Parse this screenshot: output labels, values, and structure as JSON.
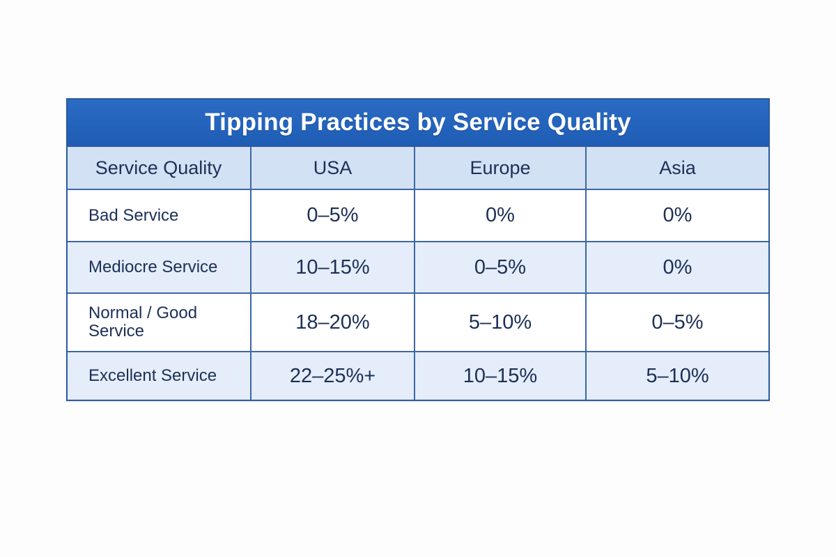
{
  "chart_data": {
    "type": "table",
    "title": "Tipping Practices by Service Quality",
    "columns": [
      "Service Quality",
      "USA",
      "Europe",
      "Asia"
    ],
    "rows": [
      {
        "label": "Bad Service",
        "values": [
          "0–5%",
          "0%",
          "0%"
        ]
      },
      {
        "label": "Mediocre Service",
        "values": [
          "10–15%",
          "0–5%",
          "0%"
        ]
      },
      {
        "label": "Normal / Good Service",
        "values": [
          "18–20%",
          "5–10%",
          "0–5%"
        ]
      },
      {
        "label": "Excellent Service",
        "values": [
          "22–25%+",
          "10–15%",
          "5–10%"
        ]
      }
    ]
  },
  "colors": {
    "title_bar": "#1f5db5",
    "header_row": "#d3e1f4",
    "tinted_row": "#e4edf9",
    "border": "#3d67a3",
    "text": "#1c2f57"
  }
}
